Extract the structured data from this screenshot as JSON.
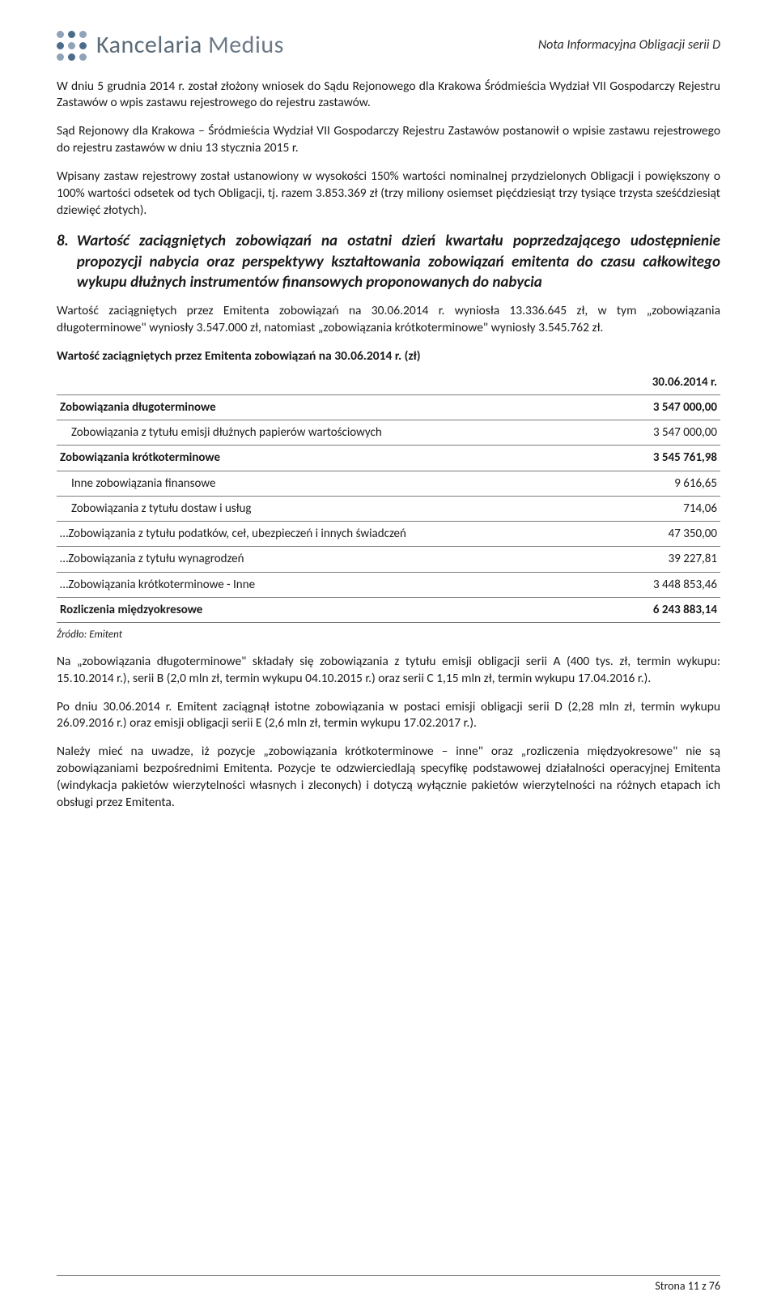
{
  "header": {
    "logo_word1": "Kancelaria",
    "logo_word2": "Medius",
    "doc_title": "Nota Informacyjna Obligacji serii D"
  },
  "p1": "W dniu 5 grudnia 2014 r. został złożony wniosek do Sądu Rejonowego dla Krakowa Śródmieścia Wydział VII Gospodarczy Rejestru Zastawów o wpis zastawu rejestrowego do rejestru zastawów.",
  "p2": "Sąd Rejonowy dla Krakowa – Śródmieścia Wydział VII Gospodarczy Rejestru Zastawów postanowił o wpisie zastawu rejestrowego do rejestru zastawów w dniu 13 stycznia 2015 r.",
  "p3": "Wpisany zastaw rejestrowy został ustanowiony w wysokości 150% wartości nominalnej przydzielonych Obligacji i powiększony o 100% wartości odsetek od tych Obligacji, tj. razem 3.853.369 zł (trzy miliony osiemset pięćdziesiąt trzy tysiące trzysta sześćdziesiąt dziewięć złotych).",
  "section": {
    "num": "8.",
    "title": "Wartość zaciągniętych zobowiązań na ostatni dzień kwartału poprzedzającego udostępnienie propozycji nabycia oraz perspektywy kształtowania zobowiązań emitenta do czasu całkowitego wykupu dłużnych instrumentów finansowych proponowanych do nabycia"
  },
  "p4": "Wartość zaciągniętych przez Emitenta zobowiązań na 30.06.2014 r. wyniosła 13.336.645 zł, w tym „zobowiązania długoterminowe\" wyniosły 3.547.000 zł, natomiast „zobowiązania krótkoterminowe\" wyniosły 3.545.762 zł.",
  "table_caption": "Wartość zaciągniętych przez Emitenta zobowiązań na 30.06.2014 r. (zł)",
  "table": {
    "date_header": "30.06.2014 r.",
    "rows": [
      {
        "label": "Zobowiązania długoterminowe",
        "value": "3 547 000,00",
        "bold": true,
        "indent": false
      },
      {
        "label": "Zobowiązania z tytułu emisji dłużnych papierów wartościowych",
        "value": "3 547 000,00",
        "bold": false,
        "indent": true
      },
      {
        "label": "Zobowiązania krótkoterminowe",
        "value": "3 545 761,98",
        "bold": true,
        "indent": false
      },
      {
        "label": "Inne zobowiązania finansowe",
        "value": "9 616,65",
        "bold": false,
        "indent": true
      },
      {
        "label": "Zobowiązania z tytułu dostaw i usług",
        "value": "714,06",
        "bold": false,
        "indent": true
      },
      {
        "label": "…Zobowiązania z tytułu podatków, ceł, ubezpieczeń i innych świadczeń",
        "value": "47 350,00",
        "bold": false,
        "indent": false
      },
      {
        "label": "…Zobowiązania z tytułu wynagrodzeń",
        "value": "39 227,81",
        "bold": false,
        "indent": false
      },
      {
        "label": "…Zobowiązania krótkoterminowe - Inne",
        "value": "3 448 853,46",
        "bold": false,
        "indent": false
      },
      {
        "label": "Rozliczenia międzyokresowe",
        "value": "6 243 883,14",
        "bold": true,
        "indent": false
      }
    ]
  },
  "source": "Źródło: Emitent",
  "p5": "Na „zobowiązania długoterminowe\" składały się zobowiązania z tytułu emisji obligacji serii A (400 tys. zł, termin wykupu: 15.10.2014 r.), serii B (2,0 mln zł, termin wykupu 04.10.2015 r.) oraz serii C 1,15 mln zł, termin wykupu 17.04.2016 r.).",
  "p6": "Po dniu 30.06.2014 r. Emitent zaciągnął istotne zobowiązania w postaci emisji obligacji serii D (2,28 mln zł, termin wykupu 26.09.2016 r.) oraz emisji obligacji serii E (2,6 mln zł, termin wykupu 17.02.2017 r.).",
  "p7": "Należy mieć na uwadze, iż pozycje „zobowiązania krótkoterminowe – inne\" oraz „rozliczenia międzyokresowe\" nie są zobowiązaniami bezpośrednimi Emitenta. Pozycje te odzwierciedlają specyfikę podstawowej działalności operacyjnej Emitenta (windykacja pakietów wierzytelności własnych i zleconych) i dotyczą wyłącznie pakietów wierzytelności na różnych etapach ich obsługi przez Emitenta.",
  "footer": "Strona 11 z 76",
  "colors": {
    "text": "#1a1a1a",
    "rule": "#7a7a7a",
    "logo_light": "#8fa4b8",
    "logo_dark": "#4b6d8a"
  }
}
